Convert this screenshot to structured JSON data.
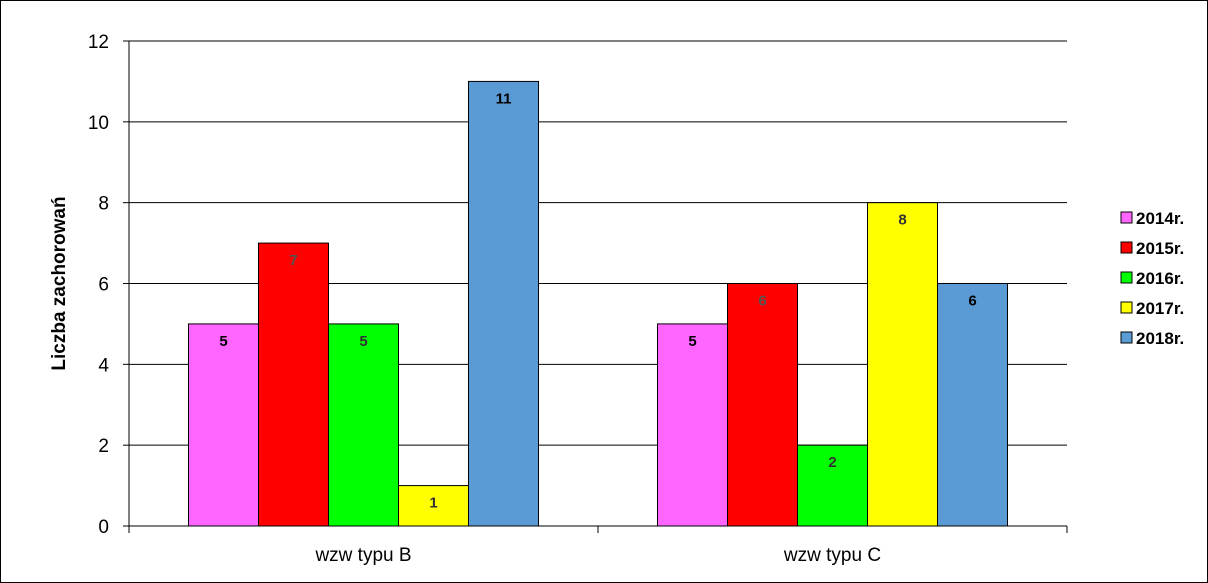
{
  "chart_data": {
    "type": "bar",
    "ylabel": "Liczba zachorowań",
    "xlabel": "",
    "ylim": [
      0,
      12
    ],
    "yticks": [
      0,
      2,
      4,
      6,
      8,
      10,
      12
    ],
    "grid": true,
    "legend_position": "right",
    "categories": [
      "wzw typu B",
      "wzw typu C"
    ],
    "series": [
      {
        "name": "2014r.",
        "color": "#ff66ff",
        "label_color": "#000000",
        "values": [
          5,
          5
        ]
      },
      {
        "name": "2015r.",
        "color": "#ff0000",
        "label_color": "#555555",
        "values": [
          7,
          6
        ]
      },
      {
        "name": "2016r.",
        "color": "#00ff00",
        "label_color": "#333333",
        "values": [
          5,
          2
        ]
      },
      {
        "name": "2017r.",
        "color": "#ffff00",
        "label_color": "#333333",
        "values": [
          1,
          8
        ]
      },
      {
        "name": "2018r.",
        "color": "#5b9bd5",
        "label_color": "#000000",
        "values": [
          11,
          6
        ]
      }
    ]
  }
}
